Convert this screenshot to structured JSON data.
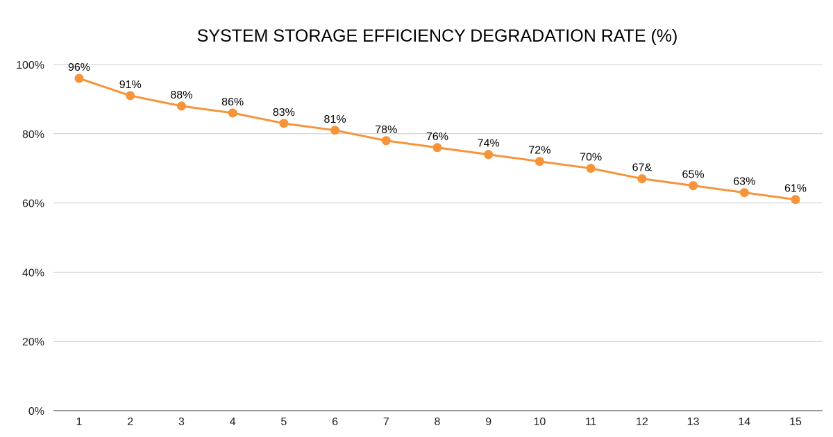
{
  "chart_data": {
    "type": "line",
    "title": "SYSTEM STORAGE EFFICIENCY DEGRADATION RATE (%)",
    "xlabel": "",
    "ylabel": "",
    "categories": [
      "1",
      "2",
      "3",
      "4",
      "5",
      "6",
      "7",
      "8",
      "9",
      "10",
      "11",
      "12",
      "13",
      "14",
      "15"
    ],
    "series": [
      {
        "values": [
          96,
          91,
          88,
          86,
          83,
          81,
          78,
          76,
          74,
          72,
          70,
          67,
          65,
          63,
          61
        ],
        "data_labels": [
          "96%",
          "91%",
          "88%",
          "86%",
          "83%",
          "81%",
          "78%",
          "76%",
          "74%",
          "72%",
          "70%",
          "67&",
          "65%",
          "63%",
          "61%"
        ],
        "color": "#f7943a"
      }
    ],
    "ylim": [
      0,
      100
    ],
    "yticks": [
      0,
      20,
      40,
      60,
      80,
      100
    ],
    "ytick_labels": [
      "0%",
      "20%",
      "40%",
      "60%",
      "80%",
      "100%"
    ],
    "grid": true,
    "gridline_color": "#cccccc",
    "legend": "none"
  }
}
